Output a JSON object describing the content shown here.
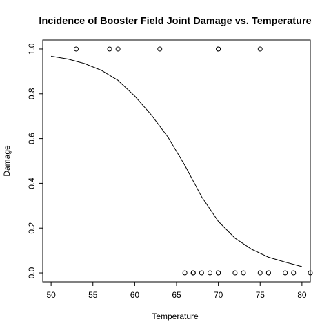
{
  "chart_data": {
    "type": "scatter",
    "title": "Incidence of Booster Field Joint Damage vs. Temperature",
    "xlabel": "Temperature",
    "ylabel": "Damage",
    "xlim": [
      49,
      81
    ],
    "ylim": [
      -0.04,
      1.04
    ],
    "xticks": [
      50,
      55,
      60,
      65,
      70,
      75,
      80
    ],
    "yticks": [
      0.0,
      0.2,
      0.4,
      0.6,
      0.8,
      1.0
    ],
    "ytick_labels": [
      "0.0",
      "0.2",
      "0.4",
      "0.6",
      "0.8",
      "1.0"
    ],
    "grid": false,
    "legend": "none",
    "series": [
      {
        "type": "scatter",
        "marker": "open-circle",
        "points": [
          {
            "x": 53,
            "y": 1
          },
          {
            "x": 57,
            "y": 1
          },
          {
            "x": 58,
            "y": 1
          },
          {
            "x": 63,
            "y": 1
          },
          {
            "x": 70,
            "y": 1
          },
          {
            "x": 70,
            "y": 1
          },
          {
            "x": 75,
            "y": 1
          },
          {
            "x": 66,
            "y": 0
          },
          {
            "x": 67,
            "y": 0
          },
          {
            "x": 67,
            "y": 0
          },
          {
            "x": 67,
            "y": 0
          },
          {
            "x": 68,
            "y": 0
          },
          {
            "x": 69,
            "y": 0
          },
          {
            "x": 70,
            "y": 0
          },
          {
            "x": 70,
            "y": 0
          },
          {
            "x": 72,
            "y": 0
          },
          {
            "x": 73,
            "y": 0
          },
          {
            "x": 75,
            "y": 0
          },
          {
            "x": 76,
            "y": 0
          },
          {
            "x": 76,
            "y": 0
          },
          {
            "x": 78,
            "y": 0
          },
          {
            "x": 79,
            "y": 0
          },
          {
            "x": 81,
            "y": 0
          }
        ]
      },
      {
        "type": "line",
        "curve": "logistic fit",
        "points": [
          {
            "x": 50,
            "y": 0.968
          },
          {
            "x": 52,
            "y": 0.955
          },
          {
            "x": 54,
            "y": 0.935
          },
          {
            "x": 56,
            "y": 0.905
          },
          {
            "x": 58,
            "y": 0.86
          },
          {
            "x": 60,
            "y": 0.79
          },
          {
            "x": 62,
            "y": 0.705
          },
          {
            "x": 64,
            "y": 0.605
          },
          {
            "x": 66,
            "y": 0.48
          },
          {
            "x": 68,
            "y": 0.34
          },
          {
            "x": 70,
            "y": 0.23
          },
          {
            "x": 72,
            "y": 0.155
          },
          {
            "x": 74,
            "y": 0.105
          },
          {
            "x": 76,
            "y": 0.07
          },
          {
            "x": 78,
            "y": 0.048
          },
          {
            "x": 80,
            "y": 0.028
          }
        ]
      }
    ]
  }
}
